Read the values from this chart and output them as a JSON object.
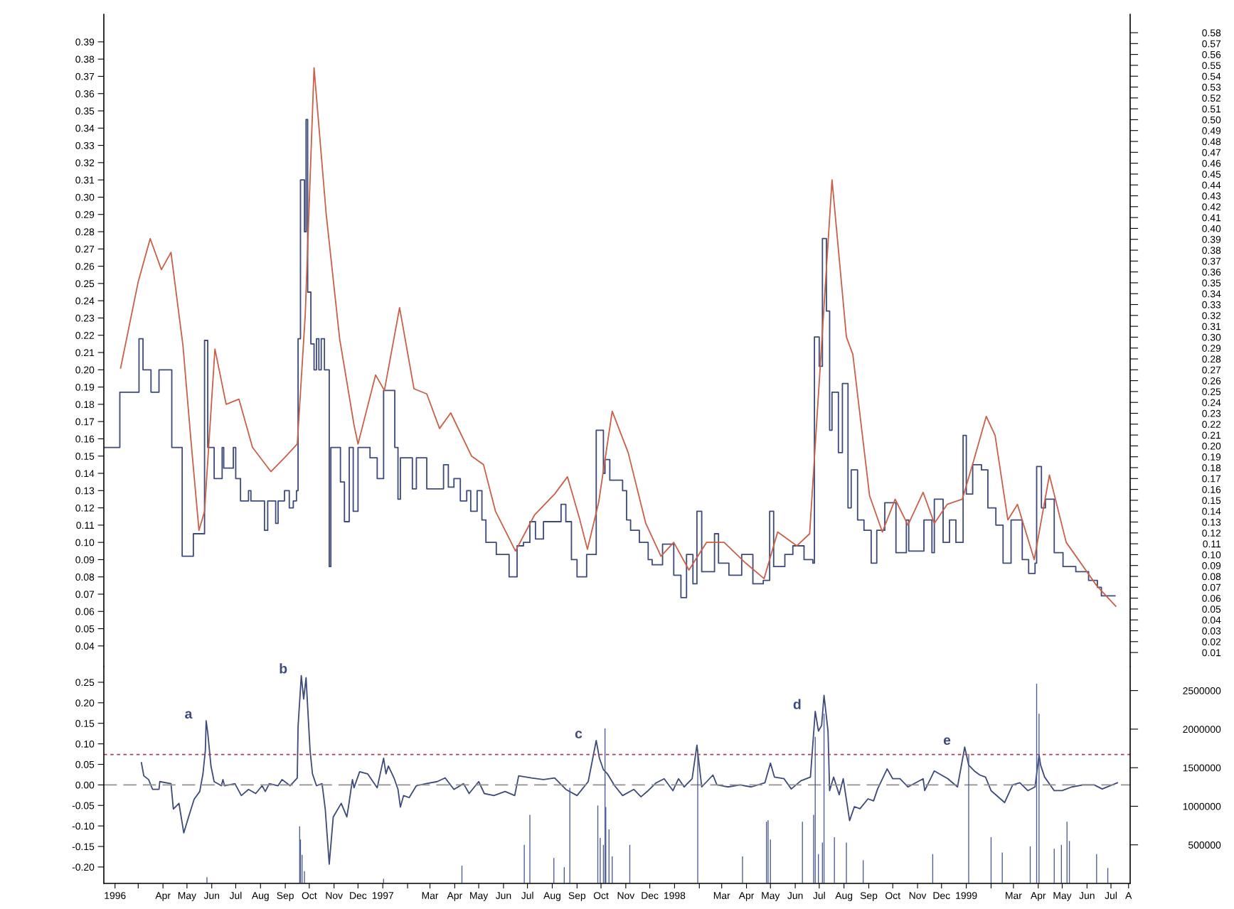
{
  "chart_data": [
    {
      "type": "step",
      "xlim": [
        "1996-02-01",
        "1999-08-08"
      ],
      "ylim": [
        0.028,
        0.406
      ],
      "yticks": [
        0.04,
        0.05,
        0.06,
        0.07,
        0.08,
        0.09,
        {
          "value": 0.1,
          "label": "0.10"
        },
        0.11,
        0.12,
        0.13,
        0.14,
        0.15,
        0.16,
        0.17,
        0.18,
        0.19,
        {
          "value": 0.2,
          "label": "0.20"
        },
        0.21,
        0.22,
        0.23,
        0.24,
        0.25,
        0.26,
        0.27,
        0.28,
        0.29,
        {
          "value": 0.3,
          "label": "0.30"
        },
        0.31,
        0.32,
        0.33,
        0.34,
        0.35,
        0.36,
        0.37,
        0.38,
        0.39
      ],
      "y2lim": [
        -0.003,
        0.597
      ],
      "y2ticks": [
        0.01,
        0.02,
        0.03,
        0.04,
        0.05,
        0.06,
        0.07,
        0.08,
        0.09,
        {
          "value": 0.1,
          "label": "0.10"
        },
        0.11,
        0.12,
        0.13,
        0.14,
        0.15,
        0.16,
        0.17,
        0.18,
        0.19,
        {
          "value": 0.2,
          "label": "0.20"
        },
        0.21,
        0.22,
        0.23,
        0.24,
        0.25,
        0.26,
        0.27,
        0.28,
        0.29,
        {
          "value": 0.3,
          "label": "0.30"
        },
        0.31,
        0.32,
        0.33,
        0.34,
        0.35,
        0.36,
        0.37,
        0.38,
        0.39,
        {
          "value": 0.4,
          "label": "0.40"
        },
        0.41,
        0.42,
        0.43,
        0.44,
        0.45,
        0.46,
        0.47,
        0.48,
        0.49,
        {
          "value": 0.5,
          "label": "0.50"
        },
        0.51,
        0.52,
        0.53,
        0.54,
        0.55,
        0.56,
        0.57,
        0.58
      ],
      "tick_labels": "y",
      "series": [
        {
          "color": "#3d4a7a",
          "x": [
            "1996-02-01",
            "1996-02-21",
            "1996-03-16",
            "1996-03-21",
            "1996-03-31",
            "1996-04-10",
            "1996-04-26",
            "1996-05-09",
            "1996-05-23",
            "1996-06-06",
            "1996-06-10",
            "1996-06-18",
            "1996-06-28",
            "1996-06-30",
            "1996-07-12",
            "1996-07-15",
            "1996-07-21",
            "1996-07-31",
            "1996-08-03",
            "1996-08-20",
            "1996-08-24",
            "1996-09-03",
            "1996-09-06",
            "1996-09-14",
            "1996-09-20",
            "1996-09-25",
            "1996-09-29",
            "1996-10-01",
            "1996-10-04",
            "1996-10-09",
            "1996-10-11",
            "1996-10-13",
            "1996-10-17",
            "1996-10-21",
            "1996-10-24",
            "1996-10-27",
            "1996-10-30",
            "1996-11-03",
            "1996-11-09",
            "1996-11-11",
            "1996-11-23",
            "1996-11-28",
            "1996-12-04",
            "1996-12-09",
            "1996-12-15",
            "1996-12-30",
            "1997-01-08",
            "1997-01-16",
            "1997-01-30",
            "1997-02-03",
            "1997-02-06",
            "1997-02-21",
            "1997-02-26",
            "1997-03-11",
            "1997-04-01",
            "1997-04-07",
            "1997-04-14",
            "1997-04-22",
            "1997-04-30",
            "1997-05-05",
            "1997-05-13",
            "1997-05-19",
            "1997-05-24",
            "1997-06-06",
            "1997-06-22",
            "1997-07-02",
            "1997-07-10",
            "1997-07-18",
            "1997-07-25",
            "1997-08-04",
            "1997-08-26",
            "1997-09-01",
            "1997-09-08",
            "1997-09-15",
            "1997-09-27",
            "1997-10-09",
            "1997-10-18",
            "1997-10-20",
            "1997-10-26",
            "1997-11-11",
            "1997-11-16",
            "1997-11-21",
            "1997-12-02",
            "1997-12-13",
            "1997-12-18",
            "1997-12-31",
            "1998-01-14",
            "1998-01-23",
            "1998-01-30",
            "1998-02-07",
            "1998-02-12",
            "1998-02-18",
            "1998-03-06",
            "1998-03-11",
            "1998-03-24",
            "1998-04-09",
            "1998-04-23",
            "1998-05-06",
            "1998-05-14",
            "1998-05-19",
            "1998-06-02",
            "1998-06-12",
            "1998-06-26",
            "1998-07-07",
            "1998-07-09",
            "1998-07-15",
            "1998-07-19",
            "1998-07-24",
            "1998-07-28",
            "1998-07-31",
            "1998-08-08",
            "1998-08-13",
            "1998-08-20",
            "1998-08-24",
            "1998-09-01",
            "1998-09-09",
            "1998-09-18",
            "1998-09-25",
            "1998-10-05",
            "1998-10-19",
            "1998-11-01",
            "1998-11-04",
            "1998-11-23",
            "1998-12-03",
            "1998-12-06",
            "1998-12-17",
            "1998-12-25",
            "1999-01-02",
            "1999-01-11",
            "1999-01-15",
            "1999-01-23",
            "1999-02-03",
            "1999-02-11",
            "1999-02-21",
            "1999-03-02",
            "1999-03-12",
            "1999-03-26",
            "1999-04-03",
            "1999-04-11",
            "1999-04-13",
            "1999-04-19",
            "1999-04-24",
            "1999-05-05",
            "1999-05-16",
            "1999-06-01",
            "1999-06-17",
            "1999-06-28",
            "1999-07-03",
            "1999-07-20"
          ],
          "values": [
            0.155,
            0.187,
            0.218,
            0.2,
            0.187,
            0.2,
            0.155,
            0.092,
            0.105,
            0.217,
            0.155,
            0.137,
            0.155,
            0.143,
            0.155,
            0.137,
            0.124,
            0.13,
            0.124,
            0.107,
            0.124,
            0.111,
            0.124,
            0.13,
            0.12,
            0.124,
            0.13,
            0.218,
            0.31,
            0.28,
            0.345,
            0.245,
            0.215,
            0.2,
            0.218,
            0.2,
            0.218,
            0.2,
            0.086,
            0.155,
            0.135,
            0.112,
            0.155,
            0.118,
            0.155,
            0.149,
            0.137,
            0.188,
            0.155,
            0.125,
            0.149,
            0.131,
            0.149,
            0.131,
            0.145,
            0.132,
            0.137,
            0.124,
            0.13,
            0.118,
            0.13,
            0.113,
            0.1,
            0.093,
            0.08,
            0.098,
            0.1,
            0.112,
            0.102,
            0.112,
            0.122,
            0.112,
            0.09,
            0.08,
            0.093,
            0.165,
            0.14,
            0.148,
            0.136,
            0.13,
            0.113,
            0.107,
            0.1,
            0.09,
            0.087,
            0.099,
            0.081,
            0.068,
            0.093,
            0.076,
            0.118,
            0.083,
            0.105,
            0.088,
            0.081,
            0.093,
            0.076,
            0.078,
            0.118,
            0.086,
            0.093,
            0.098,
            0.09,
            0.088,
            0.219,
            0.202,
            0.276,
            0.234,
            0.165,
            0.187,
            0.152,
            0.192,
            0.12,
            0.142,
            0.113,
            0.107,
            0.088,
            0.107,
            0.123,
            0.094,
            0.113,
            0.095,
            0.113,
            0.094,
            0.125,
            0.1,
            0.113,
            0.1,
            0.162,
            0.128,
            0.145,
            0.142,
            0.12,
            0.11,
            0.088,
            0.113,
            0.09,
            0.082,
            0.088,
            0.144,
            0.12,
            0.125,
            0.094,
            0.086,
            0.083,
            0.078,
            0.074,
            0.069,
            0.069
          ]
        },
        {
          "type": "line",
          "color": "#c8604a",
          "x": [
            "1996-02-22",
            "1996-03-15",
            "1996-03-30",
            "1996-04-13",
            "1996-04-25",
            "1996-05-10",
            "1996-05-20",
            "1996-05-30",
            "1996-06-06",
            "1996-06-19",
            "1996-07-03",
            "1996-07-19",
            "1996-08-05",
            "1996-08-28",
            "1996-09-14",
            "1996-09-30",
            "1996-10-10",
            "1996-10-21",
            "1996-11-05",
            "1996-11-22",
            "1996-12-10",
            "1996-12-15",
            "1997-01-06",
            "1997-01-17",
            "1997-02-05",
            "1997-02-23",
            "1997-03-11",
            "1997-03-27",
            "1997-04-10",
            "1997-05-06",
            "1997-05-21",
            "1997-06-05",
            "1997-06-30",
            "1997-07-24",
            "1997-08-18",
            "1997-09-03",
            "1997-09-18",
            "1997-09-28",
            "1997-10-12",
            "1997-10-29",
            "1997-11-18",
            "1997-12-10",
            "1997-12-29",
            "1998-01-14",
            "1998-02-02",
            "1998-02-24",
            "1998-03-18",
            "1998-04-14",
            "1998-05-07",
            "1998-05-24",
            "1998-06-17",
            "1998-07-03",
            "1998-07-31",
            "1998-08-18",
            "1998-08-26",
            "1998-09-16",
            "1998-10-02",
            "1998-10-18",
            "1998-11-03",
            "1998-11-22",
            "1998-12-06",
            "1998-12-22",
            "1999-01-10",
            "1999-01-24",
            "1999-02-09",
            "1999-02-20",
            "1999-03-08",
            "1999-03-20",
            "1999-04-10",
            "1999-04-29",
            "1999-05-20",
            "1999-06-27",
            "1999-07-21"
          ],
          "values": [
            0.201,
            0.251,
            0.276,
            0.258,
            0.268,
            0.214,
            0.159,
            0.107,
            0.118,
            0.212,
            0.18,
            0.183,
            0.155,
            0.141,
            0.149,
            0.157,
            0.232,
            0.375,
            0.291,
            0.218,
            0.168,
            0.157,
            0.197,
            0.188,
            0.236,
            0.189,
            0.186,
            0.166,
            0.175,
            0.15,
            0.145,
            0.118,
            0.095,
            0.116,
            0.128,
            0.138,
            0.114,
            0.096,
            0.123,
            0.176,
            0.152,
            0.111,
            0.092,
            0.1,
            0.084,
            0.1,
            0.1,
            0.088,
            0.079,
            0.106,
            0.098,
            0.105,
            0.31,
            0.219,
            0.209,
            0.127,
            0.106,
            0.125,
            0.11,
            0.129,
            0.111,
            0.122,
            0.125,
            0.147,
            0.173,
            0.162,
            0.113,
            0.122,
            0.09,
            0.139,
            0.1,
            0.075,
            0.063
          ]
        }
      ]
    },
    {
      "type": "line",
      "xlim": [
        "1996-02-01",
        "1999-08-08"
      ],
      "ylim": [
        -0.24,
        0.288
      ],
      "yticks": [
        {
          "value": -0.2,
          "label": "-0.20"
        },
        {
          "value": -0.15,
          "label": "-0.15"
        },
        {
          "value": -0.1,
          "label": "-0.10"
        },
        {
          "value": -0.05,
          "label": "-0.05"
        },
        {
          "value": 0,
          "label": "0.00"
        },
        {
          "value": 0.05,
          "label": "0.05"
        },
        {
          "value": 0.1,
          "label": "0.10"
        },
        0.15,
        {
          "value": 0.2,
          "label": "0.20"
        },
        0.25
      ],
      "y2lim": [
        0,
        2810000
      ],
      "y2ticks": [
        500000,
        1000000,
        1500000,
        2000000,
        2500000
      ],
      "xticks": [
        {
          "value": "1996-02-15",
          "label": "1996"
        },
        {
          "value": "1996-03-15",
          "label": null
        },
        {
          "value": "1996-04-15",
          "label": "Apr"
        },
        {
          "value": "1996-05-15",
          "label": "May"
        },
        {
          "value": "1996-06-15",
          "label": "Jun"
        },
        {
          "value": "1996-07-15",
          "label": "Jul"
        },
        {
          "value": "1996-08-15",
          "label": "Aug"
        },
        {
          "value": "1996-09-15",
          "label": "Sep"
        },
        {
          "value": "1996-10-15",
          "label": "Oct"
        },
        {
          "value": "1996-11-15",
          "label": "Nov"
        },
        {
          "value": "1996-12-15",
          "label": "Dec"
        },
        {
          "value": "1997-01-15",
          "label": "1997"
        },
        {
          "value": "1997-02-15",
          "label": null
        },
        {
          "value": "1997-03-15",
          "label": "Mar"
        },
        {
          "value": "1997-04-15",
          "label": "Apr"
        },
        {
          "value": "1997-05-15",
          "label": "May"
        },
        {
          "value": "1997-06-15",
          "label": "Jun"
        },
        {
          "value": "1997-07-15",
          "label": "Jul"
        },
        {
          "value": "1997-08-15",
          "label": "Aug"
        },
        {
          "value": "1997-09-15",
          "label": "Sep"
        },
        {
          "value": "1997-10-15",
          "label": "Oct"
        },
        {
          "value": "1997-11-15",
          "label": "Nov"
        },
        {
          "value": "1997-12-15",
          "label": "Dec"
        },
        {
          "value": "1998-01-15",
          "label": "1998"
        },
        {
          "value": "1998-02-15",
          "label": null
        },
        {
          "value": "1998-03-15",
          "label": "Mar"
        },
        {
          "value": "1998-04-15",
          "label": "Apr"
        },
        {
          "value": "1998-05-15",
          "label": "May"
        },
        {
          "value": "1998-06-15",
          "label": "Jun"
        },
        {
          "value": "1998-07-15",
          "label": "Jul"
        },
        {
          "value": "1998-08-15",
          "label": "Aug"
        },
        {
          "value": "1998-09-15",
          "label": "Sep"
        },
        {
          "value": "1998-10-15",
          "label": "Oct"
        },
        {
          "value": "1998-11-15",
          "label": "Nov"
        },
        {
          "value": "1998-12-15",
          "label": "Dec"
        },
        {
          "value": "1999-01-15",
          "label": "1999"
        },
        {
          "value": "1999-02-15",
          "label": null
        },
        {
          "value": "1999-03-15",
          "label": "Mar"
        },
        {
          "value": "1999-04-15",
          "label": "Apr"
        },
        {
          "value": "1999-05-15",
          "label": "May"
        },
        {
          "value": "1999-06-15",
          "label": "Jun"
        },
        {
          "value": "1999-07-15",
          "label": "Jul"
        },
        {
          "value": "1999-08-06",
          "label": "A"
        }
      ],
      "ref_lines": [
        {
          "axis": "y",
          "value": 0,
          "color": "#909090",
          "line_style": "dashed"
        },
        {
          "axis": "y",
          "value": 0.074,
          "color": "#a8405a",
          "line_style": "dotted"
        }
      ],
      "annotations": [
        {
          "text": "a",
          "x": "1996-06-08",
          "y": 0.156
        },
        {
          "text": "b",
          "x": "1996-10-05",
          "y": 0.266
        },
        {
          "text": "c",
          "x": "1997-10-09",
          "y": 0.108
        },
        {
          "text": "d",
          "x": "1998-07-10",
          "y": 0.179
        },
        {
          "text": "e",
          "x": "1999-01-13",
          "y": 0.092
        }
      ],
      "series": [
        {
          "type": "bar",
          "axis": "y2",
          "color": "#4d5c94",
          "x": [
            "1996-06-09",
            "1996-10-03",
            "1996-10-04",
            "1996-10-06",
            "1996-10-09",
            "1997-01-16",
            "1997-04-24",
            "1997-07-11",
            "1997-07-18",
            "1997-08-17",
            "1997-08-30",
            "1997-09-06",
            "1997-10-11",
            "1997-10-14",
            "1997-10-18",
            "1997-10-20",
            "1997-10-21",
            "1997-10-25",
            "1997-10-29",
            "1997-11-20",
            "1998-02-13",
            "1998-04-10",
            "1998-05-10",
            "1998-05-12",
            "1998-05-15",
            "1998-06-24",
            "1998-07-08",
            "1998-07-10",
            "1998-07-14",
            "1998-07-19",
            "1998-07-21",
            "1998-08-03",
            "1998-08-18",
            "1998-09-08",
            "1998-12-04",
            "1999-01-18",
            "1999-02-15",
            "1999-03-01",
            "1999-04-05",
            "1999-04-13",
            "1999-04-16",
            "1999-05-05",
            "1999-05-14",
            "1999-05-21",
            "1999-05-24",
            "1999-06-27",
            "1999-07-11"
          ],
          "values": [
            80000,
            740000,
            570000,
            370000,
            160000,
            60000,
            230000,
            500000,
            890000,
            330000,
            210000,
            1240000,
            1010000,
            590000,
            500000,
            2010000,
            990000,
            700000,
            350000,
            500000,
            1730000,
            350000,
            800000,
            820000,
            570000,
            800000,
            890000,
            1900000,
            380000,
            530000,
            2200000,
            600000,
            530000,
            300000,
            380000,
            1680000,
            600000,
            400000,
            480000,
            2590000,
            2200000,
            450000,
            500000,
            800000,
            550000,
            380000,
            200000
          ]
        },
        {
          "color": "#3d4a7a",
          "x": [
            "1996-03-19",
            "1996-03-22",
            "1996-03-28",
            "1996-04-02",
            "1996-04-10",
            "1996-04-11",
            "1996-04-25",
            "1996-04-28",
            "1996-05-05",
            "1996-05-11",
            "1996-05-17",
            "1996-05-24",
            "1996-05-31",
            "1996-06-04",
            "1996-06-07",
            "1996-06-08",
            "1996-06-10",
            "1996-06-14",
            "1996-06-18",
            "1996-06-27",
            "1996-06-29",
            "1996-07-01",
            "1996-07-14",
            "1996-07-22",
            "1996-07-31",
            "1996-08-09",
            "1996-08-17",
            "1996-08-21",
            "1996-08-26",
            "1996-09-06",
            "1996-09-11",
            "1996-09-21",
            "1996-09-30",
            "1996-10-01",
            "1996-10-05",
            "1996-10-08",
            "1996-10-11",
            "1996-10-13",
            "1996-10-16",
            "1996-10-19",
            "1996-10-24",
            "1996-10-31",
            "1996-11-04",
            "1996-11-09",
            "1996-11-14",
            "1996-11-24",
            "1996-12-01",
            "1996-12-03",
            "1996-12-08",
            "1996-12-10",
            "1996-12-17",
            "1996-12-27",
            "1997-01-08",
            "1997-01-16",
            "1997-01-19",
            "1997-01-22",
            "1997-01-29",
            "1997-02-03",
            "1997-02-06",
            "1997-02-10",
            "1997-02-17",
            "1997-02-26",
            "1997-03-10",
            "1997-03-24",
            "1997-04-03",
            "1997-04-14",
            "1997-04-26",
            "1997-05-03",
            "1997-05-15",
            "1997-05-22",
            "1997-06-03",
            "1997-06-17",
            "1997-06-29",
            "1997-07-04",
            "1997-07-20",
            "1997-08-04",
            "1997-08-18",
            "1997-09-01",
            "1997-09-15",
            "1997-09-29",
            "1997-10-09",
            "1997-10-13",
            "1997-10-18",
            "1997-10-23",
            "1997-11-01",
            "1997-11-11",
            "1997-11-25",
            "1997-12-04",
            "1997-12-13",
            "1997-12-23",
            "1998-01-02",
            "1998-01-13",
            "1998-01-20",
            "1998-01-27",
            "1998-02-06",
            "1998-02-12",
            "1998-02-18",
            "1998-03-04",
            "1998-03-09",
            "1998-03-23",
            "1998-04-07",
            "1998-04-21",
            "1998-05-08",
            "1998-05-15",
            "1998-05-20",
            "1998-06-01",
            "1998-06-10",
            "1998-06-22",
            "1998-07-04",
            "1998-07-10",
            "1998-07-14",
            "1998-07-18",
            "1998-07-21",
            "1998-07-26",
            "1998-07-28",
            "1998-08-02",
            "1998-08-09",
            "1998-08-14",
            "1998-08-22",
            "1998-08-28",
            "1998-09-04",
            "1998-09-14",
            "1998-09-21",
            "1998-09-26",
            "1998-10-08",
            "1998-10-15",
            "1998-10-24",
            "1998-11-03",
            "1998-11-22",
            "1998-11-24",
            "1998-12-06",
            "1998-12-23",
            "1999-01-04",
            "1999-01-13",
            "1999-01-18",
            "1999-01-25",
            "1999-02-01",
            "1999-02-08",
            "1999-02-15",
            "1999-03-04",
            "1999-03-14",
            "1999-03-23",
            "1999-04-02",
            "1999-04-11",
            "1999-04-16",
            "1999-04-18",
            "1999-04-23",
            "1999-05-05",
            "1999-05-15",
            "1999-05-27",
            "1999-06-10",
            "1999-06-24",
            "1999-07-04",
            "1999-07-23"
          ],
          "values": [
            0.054,
            0.022,
            0.013,
            -0.011,
            -0.011,
            0.008,
            0.003,
            -0.059,
            -0.045,
            -0.117,
            -0.078,
            -0.035,
            -0.016,
            0.027,
            0.084,
            0.156,
            0.127,
            0.046,
            0.008,
            -0.002,
            0.013,
            -0.002,
            0.003,
            -0.026,
            -0.011,
            -0.021,
            -0.002,
            -0.016,
            0.003,
            -0.002,
            0.013,
            -0.002,
            0.017,
            0.142,
            0.266,
            0.209,
            0.261,
            0.19,
            0.084,
            0.027,
            -0.002,
            0.003,
            -0.059,
            -0.193,
            -0.078,
            -0.045,
            -0.078,
            -0.054,
            0.013,
            -0.007,
            0.032,
            0.027,
            -0.007,
            0.065,
            0.027,
            0.046,
            0.017,
            -0.011,
            -0.054,
            -0.026,
            -0.031,
            -0.002,
            0.003,
            0.008,
            0.017,
            -0.011,
            0.003,
            -0.021,
            0.008,
            -0.021,
            -0.026,
            -0.016,
            -0.026,
            0.022,
            0.017,
            0.013,
            0.017,
            -0.011,
            -0.026,
            0.008,
            0.108,
            0.065,
            0.037,
            0.027,
            -0.002,
            -0.026,
            -0.011,
            -0.029,
            -0.014,
            0.005,
            0.015,
            -0.014,
            0.015,
            -0.005,
            0.015,
            0.097,
            -0.005,
            0.024,
            0.0,
            -0.005,
            0.0,
            -0.005,
            0.005,
            0.053,
            0.019,
            0.015,
            -0.01,
            0.01,
            0.019,
            0.179,
            0.131,
            0.145,
            0.218,
            0.131,
            -0.014,
            0.019,
            -0.024,
            0.015,
            -0.087,
            -0.053,
            -0.058,
            -0.034,
            -0.039,
            -0.01,
            0.039,
            0.015,
            0.015,
            -0.005,
            0.015,
            -0.014,
            0.034,
            0.015,
            -0.005,
            0.092,
            0.048,
            0.034,
            0.024,
            0.019,
            -0.014,
            -0.043,
            0.0,
            0.005,
            -0.014,
            -0.005,
            0.073,
            0.048,
            0.019,
            -0.014,
            -0.014,
            -0.005,
            0.0,
            0.0,
            -0.01,
            0.005
          ]
        }
      ]
    }
  ]
}
